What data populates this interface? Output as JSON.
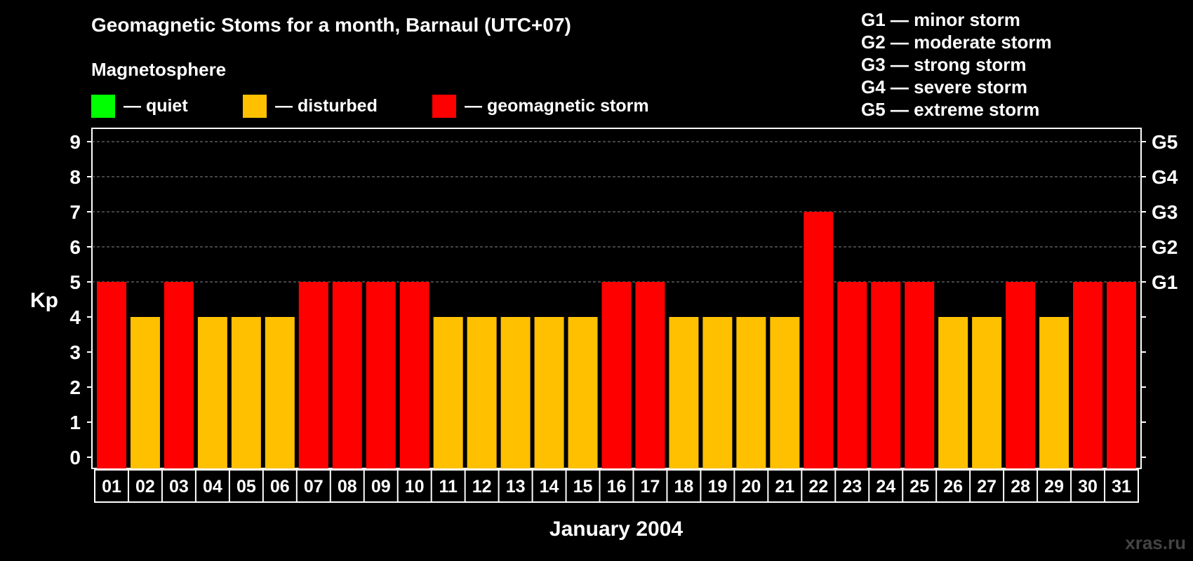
{
  "title": "Geomagnetic Stoms for a month, Barnaul (UTC+07)",
  "subtitle": "Magnetosphere",
  "legend": [
    {
      "label": "— quiet",
      "color": "#00ff00"
    },
    {
      "label": "— disturbed",
      "color": "#ffc000"
    },
    {
      "label": "— geomagnetic storm",
      "color": "#ff0000"
    }
  ],
  "g_scale": [
    "G1 — minor storm",
    "G2 — moderate storm",
    "G3 — strong storm",
    "G4 — severe storm",
    "G5 — extreme storm"
  ],
  "watermark": "xras.ru",
  "chart_data": {
    "type": "bar",
    "ylabel": "Kp",
    "xlabel": "January 2004",
    "ylim": [
      0,
      9
    ],
    "yticks": [
      "0",
      "1",
      "2",
      "3",
      "4",
      "5",
      "6",
      "7",
      "8",
      "9"
    ],
    "right_labels": [
      {
        "y": 5,
        "label": "G1"
      },
      {
        "y": 6,
        "label": "G2"
      },
      {
        "y": 7,
        "label": "G3"
      },
      {
        "y": 8,
        "label": "G4"
      },
      {
        "y": 9,
        "label": "G5"
      }
    ],
    "grid": "dashed horizontal at 5-9",
    "categories": [
      "01",
      "02",
      "03",
      "04",
      "05",
      "06",
      "07",
      "08",
      "09",
      "10",
      "11",
      "12",
      "13",
      "14",
      "15",
      "16",
      "17",
      "18",
      "19",
      "20",
      "21",
      "22",
      "23",
      "24",
      "25",
      "26",
      "27",
      "28",
      "29",
      "30",
      "31"
    ],
    "values": [
      5,
      4,
      5,
      4,
      4,
      4,
      5,
      5,
      5,
      5,
      4,
      4,
      4,
      4,
      4,
      5,
      5,
      4,
      4,
      4,
      4,
      7,
      5,
      5,
      5,
      4,
      4,
      5,
      4,
      5,
      5
    ],
    "colors": {
      "quiet": "#00ff00",
      "disturbed": "#ffc000",
      "storm": "#ff0000"
    }
  }
}
